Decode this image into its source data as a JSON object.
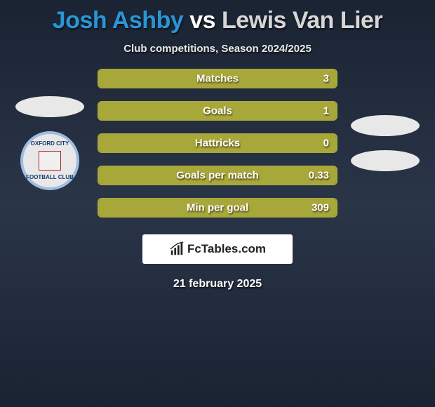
{
  "title": {
    "player1": "Josh Ashby",
    "vs": "vs",
    "player2": "Lewis Van Lier"
  },
  "subtitle": "Club competitions, Season 2024/2025",
  "colors": {
    "player1_fill": "#a8a83a",
    "player1_border": "#a8a83a",
    "player2_fill": "#d6d6d6",
    "player2_border": "#d6d6d6",
    "background_top": "#1a2332",
    "background_mid": "#2a3548",
    "text_white": "#ffffff"
  },
  "crest_left": {
    "top": "OXFORD CITY",
    "bottom": "FOOTBALL CLUB"
  },
  "bars": [
    {
      "label": "Matches",
      "value": "3",
      "fill_pct": 100
    },
    {
      "label": "Goals",
      "value": "1",
      "fill_pct": 100
    },
    {
      "label": "Hattricks",
      "value": "0",
      "fill_pct": 100
    },
    {
      "label": "Goals per match",
      "value": "0.33",
      "fill_pct": 100
    },
    {
      "label": "Min per goal",
      "value": "309",
      "fill_pct": 100
    }
  ],
  "brand": "FcTables.com",
  "date": "21 february 2025"
}
